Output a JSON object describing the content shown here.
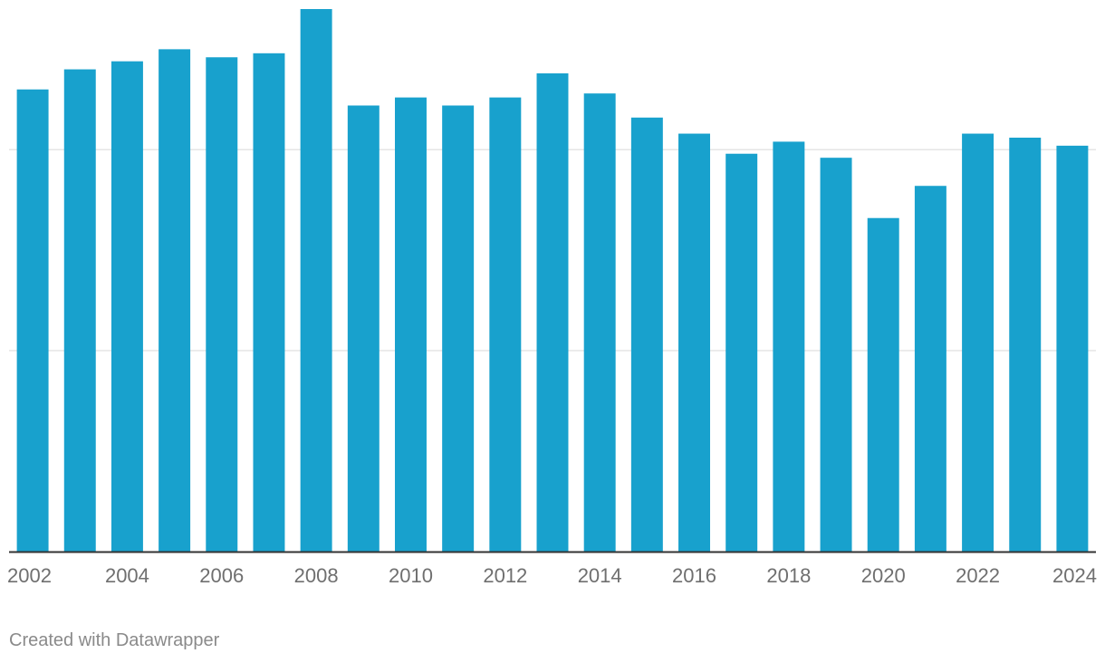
{
  "chart_data": {
    "type": "bar",
    "categories": [
      "2002",
      "2003",
      "2004",
      "2005",
      "2006",
      "2007",
      "2008",
      "2009",
      "2010",
      "2011",
      "2012",
      "2013",
      "2014",
      "2015",
      "2016",
      "2017",
      "2018",
      "2019",
      "2020",
      "2021",
      "2022",
      "2023",
      "2024"
    ],
    "values": [
      2.3,
      2.4,
      2.44,
      2.5,
      2.46,
      2.48,
      2.7,
      2.22,
      2.26,
      2.22,
      2.26,
      2.38,
      2.28,
      2.16,
      2.08,
      1.98,
      2.04,
      1.96,
      1.66,
      1.82,
      2.08,
      2.06,
      2.02
    ],
    "x_tick_labels": [
      "2002",
      "2004",
      "2006",
      "2008",
      "2010",
      "2012",
      "2014",
      "2016",
      "2018",
      "2020",
      "2022",
      "2024"
    ],
    "ylim": [
      0,
      2.7
    ],
    "gridlines_y": [
      1.0,
      2.0
    ],
    "grid": true,
    "bar_color": "#18a1cd",
    "gridline_color": "#e5e5e5",
    "baseline_color": "#333333"
  },
  "footer": {
    "credit": "Created with Datawrapper"
  }
}
